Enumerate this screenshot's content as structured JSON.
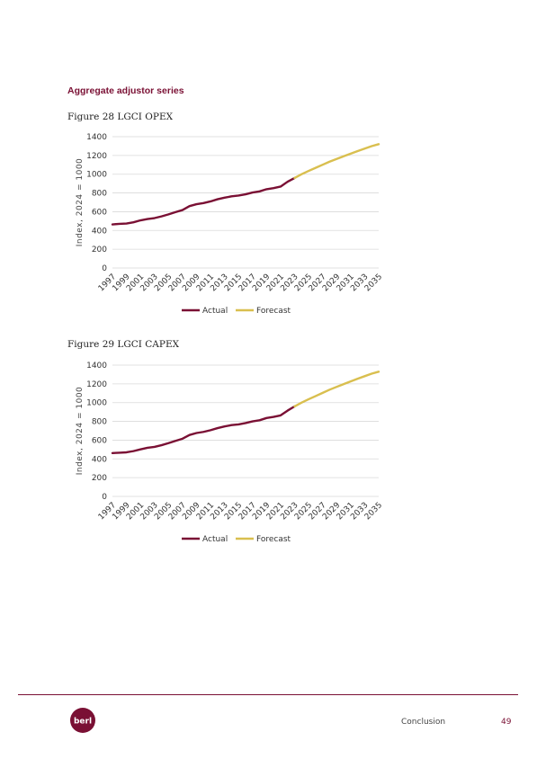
{
  "section_heading": "Aggregate adjustor series",
  "figures": [
    {
      "caption": "Figure 28 LGCI OPEX"
    },
    {
      "caption": "Figure 29 LGCI CAPEX"
    }
  ],
  "footer": {
    "section": "Conclusion",
    "page": "49",
    "logo_text": "berl"
  },
  "chart_data": [
    {
      "type": "line",
      "ylabel": "Index, 2024 = 1000",
      "xlabel": "",
      "ylim": [
        0,
        1400
      ],
      "yticks": [
        0,
        200,
        400,
        600,
        800,
        1000,
        1200,
        1400
      ],
      "xlim": [
        1997,
        2035
      ],
      "xticks": [
        "1997",
        "1999",
        "2001",
        "2003",
        "2005",
        "2007",
        "2009",
        "2011",
        "2013",
        "2015",
        "2017",
        "2019",
        "2021",
        "2023",
        "2025",
        "2027",
        "2029",
        "2031",
        "2033",
        "2035"
      ],
      "grid": true,
      "legend": "bottom",
      "colors": {
        "Actual": "#7a1034",
        "Forecast": "#d9bf4f"
      },
      "series": [
        {
          "name": "Actual",
          "x": [
            1997,
            1998,
            1999,
            2000,
            2001,
            2002,
            2003,
            2004,
            2005,
            2006,
            2007,
            2008,
            2009,
            2010,
            2011,
            2012,
            2013,
            2014,
            2015,
            2016,
            2017,
            2018,
            2019,
            2020,
            2021,
            2022,
            2023
          ],
          "values": [
            465,
            470,
            474,
            487,
            508,
            522,
            532,
            550,
            572,
            596,
            618,
            660,
            680,
            692,
            710,
            733,
            750,
            764,
            772,
            786,
            805,
            817,
            840,
            852,
            868,
            920,
            960
          ]
        },
        {
          "name": "Forecast",
          "x": [
            2023,
            2024,
            2025,
            2026,
            2027,
            2028,
            2029,
            2030,
            2031,
            2032,
            2033,
            2034,
            2035
          ],
          "values": [
            960,
            1000,
            1035,
            1068,
            1101,
            1134,
            1163,
            1191,
            1219,
            1247,
            1273,
            1299,
            1320
          ]
        }
      ]
    },
    {
      "type": "line",
      "ylabel": "Index, 2024 = 1000",
      "xlabel": "",
      "ylim": [
        0,
        1400
      ],
      "yticks": [
        0,
        200,
        400,
        600,
        800,
        1000,
        1200,
        1400
      ],
      "xlim": [
        1997,
        2035
      ],
      "xticks": [
        "1997",
        "1999",
        "2001",
        "2003",
        "2005",
        "2007",
        "2009",
        "2011",
        "2013",
        "2015",
        "2017",
        "2019",
        "2021",
        "2023",
        "2025",
        "2027",
        "2029",
        "2031",
        "2033",
        "2035"
      ],
      "grid": true,
      "legend": "bottom",
      "colors": {
        "Actual": "#7a1034",
        "Forecast": "#d9bf4f"
      },
      "series": [
        {
          "name": "Actual",
          "x": [
            1997,
            1998,
            1999,
            2000,
            2001,
            2002,
            2003,
            2004,
            2005,
            2006,
            2007,
            2008,
            2009,
            2010,
            2011,
            2012,
            2013,
            2014,
            2015,
            2016,
            2017,
            2018,
            2019,
            2020,
            2021,
            2022,
            2023
          ],
          "values": [
            462,
            466,
            470,
            483,
            502,
            518,
            528,
            546,
            568,
            592,
            615,
            655,
            676,
            688,
            706,
            728,
            746,
            760,
            768,
            782,
            800,
            812,
            836,
            848,
            864,
            915,
            960
          ]
        },
        {
          "name": "Forecast",
          "x": [
            2023,
            2024,
            2025,
            2026,
            2027,
            2028,
            2029,
            2030,
            2031,
            2032,
            2033,
            2034,
            2035
          ],
          "values": [
            960,
            1000,
            1036,
            1070,
            1104,
            1138,
            1168,
            1197,
            1226,
            1255,
            1282,
            1309,
            1330
          ]
        }
      ]
    }
  ]
}
